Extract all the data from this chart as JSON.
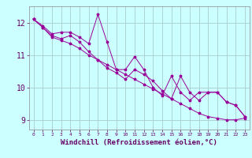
{
  "background_color": "#ccffff",
  "grid_color": "#aacccc",
  "line_color": "#990099",
  "marker_color": "#990099",
  "xlabel": "Windchill (Refroidissement éolien,°C)",
  "ylabel_ticks": [
    9,
    10,
    11,
    12
  ],
  "xlim": [
    -0.5,
    23.5
  ],
  "ylim": [
    8.7,
    12.5
  ],
  "xticks": [
    0,
    1,
    2,
    3,
    4,
    5,
    6,
    7,
    8,
    9,
    10,
    11,
    12,
    13,
    14,
    15,
    16,
    17,
    18,
    19,
    20,
    21,
    22,
    23
  ],
  "series1_x": [
    0,
    1,
    2,
    3,
    4,
    5,
    6,
    7,
    8,
    9,
    10,
    11,
    12,
    13,
    14,
    15,
    16,
    17,
    18,
    19,
    20,
    21,
    22,
    23
  ],
  "series1_y": [
    12.1,
    11.9,
    11.65,
    11.7,
    11.7,
    11.55,
    11.35,
    12.25,
    11.4,
    10.55,
    10.55,
    10.95,
    10.55,
    10.0,
    9.75,
    10.35,
    9.85,
    9.6,
    9.85,
    9.85,
    9.85,
    9.55,
    9.45,
    9.1
  ],
  "series2_x": [
    0,
    1,
    2,
    3,
    4,
    5,
    6,
    7,
    8,
    9,
    10,
    11,
    12,
    13,
    14,
    15,
    16,
    17,
    18,
    19,
    20,
    21,
    22,
    23
  ],
  "series2_y": [
    12.1,
    11.85,
    11.55,
    11.45,
    11.35,
    11.2,
    11.0,
    10.85,
    10.7,
    10.55,
    10.4,
    10.25,
    10.1,
    9.95,
    9.8,
    9.65,
    9.5,
    9.35,
    9.2,
    9.1,
    9.05,
    9.0,
    9.0,
    9.05
  ],
  "series3_x": [
    0,
    1,
    2,
    3,
    4,
    5,
    6,
    7,
    8,
    9,
    10,
    11,
    12,
    13,
    14,
    15,
    16,
    17,
    18,
    19,
    20,
    21,
    22,
    23
  ],
  "series3_y": [
    12.1,
    11.85,
    11.6,
    11.5,
    11.6,
    11.4,
    11.1,
    10.85,
    10.6,
    10.45,
    10.25,
    10.55,
    10.4,
    10.2,
    9.9,
    9.65,
    10.35,
    9.85,
    9.6,
    9.85,
    9.85,
    9.55,
    9.45,
    9.1
  ],
  "font_size_xlabel": 6.5,
  "font_size_ytick": 7,
  "font_size_xtick": 4.5
}
